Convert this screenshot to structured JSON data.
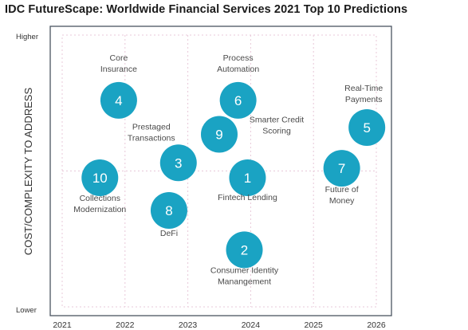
{
  "chart_data": {
    "type": "scatter",
    "title": "IDC FutureScape: Worldwide Financial Services 2021 Top 10 Predictions",
    "xlabel": "",
    "ylabel": "COST/COMPLEXITY TO ADDRESS",
    "x_ticks": [
      "2021",
      "2022",
      "2023",
      "2024",
      "2025",
      "2026"
    ],
    "xlim": [
      2021,
      2026
    ],
    "y_end_labels": {
      "top": "Higher",
      "bottom": "Lower"
    },
    "ylim": [
      0,
      10
    ],
    "grid": true,
    "bubble_color": "#1aa3c3",
    "points": [
      {
        "num": "1",
        "label": "Fintech Lending",
        "x": 2023.95,
        "y": 4.75
      },
      {
        "num": "2",
        "label": "Consumer Identity Manangement",
        "x": 2023.9,
        "y": 2.1
      },
      {
        "num": "3",
        "label": "Prestaged Transactions",
        "x": 2022.85,
        "y": 5.3
      },
      {
        "num": "4",
        "label": "Core Insurance",
        "x": 2021.9,
        "y": 7.6
      },
      {
        "num": "5",
        "label": "Real-Time Payments",
        "x": 2025.85,
        "y": 6.6
      },
      {
        "num": "6",
        "label": "Process Automation",
        "x": 2023.8,
        "y": 7.6
      },
      {
        "num": "7",
        "label": "Future of Money",
        "x": 2025.45,
        "y": 5.1
      },
      {
        "num": "8",
        "label": "DeFi",
        "x": 2022.7,
        "y": 3.55
      },
      {
        "num": "9",
        "label": "Smarter Credit Scoring",
        "x": 2023.5,
        "y": 6.35
      },
      {
        "num": "10",
        "label": "Collections Modernization",
        "x": 2021.6,
        "y": 4.75
      }
    ]
  }
}
